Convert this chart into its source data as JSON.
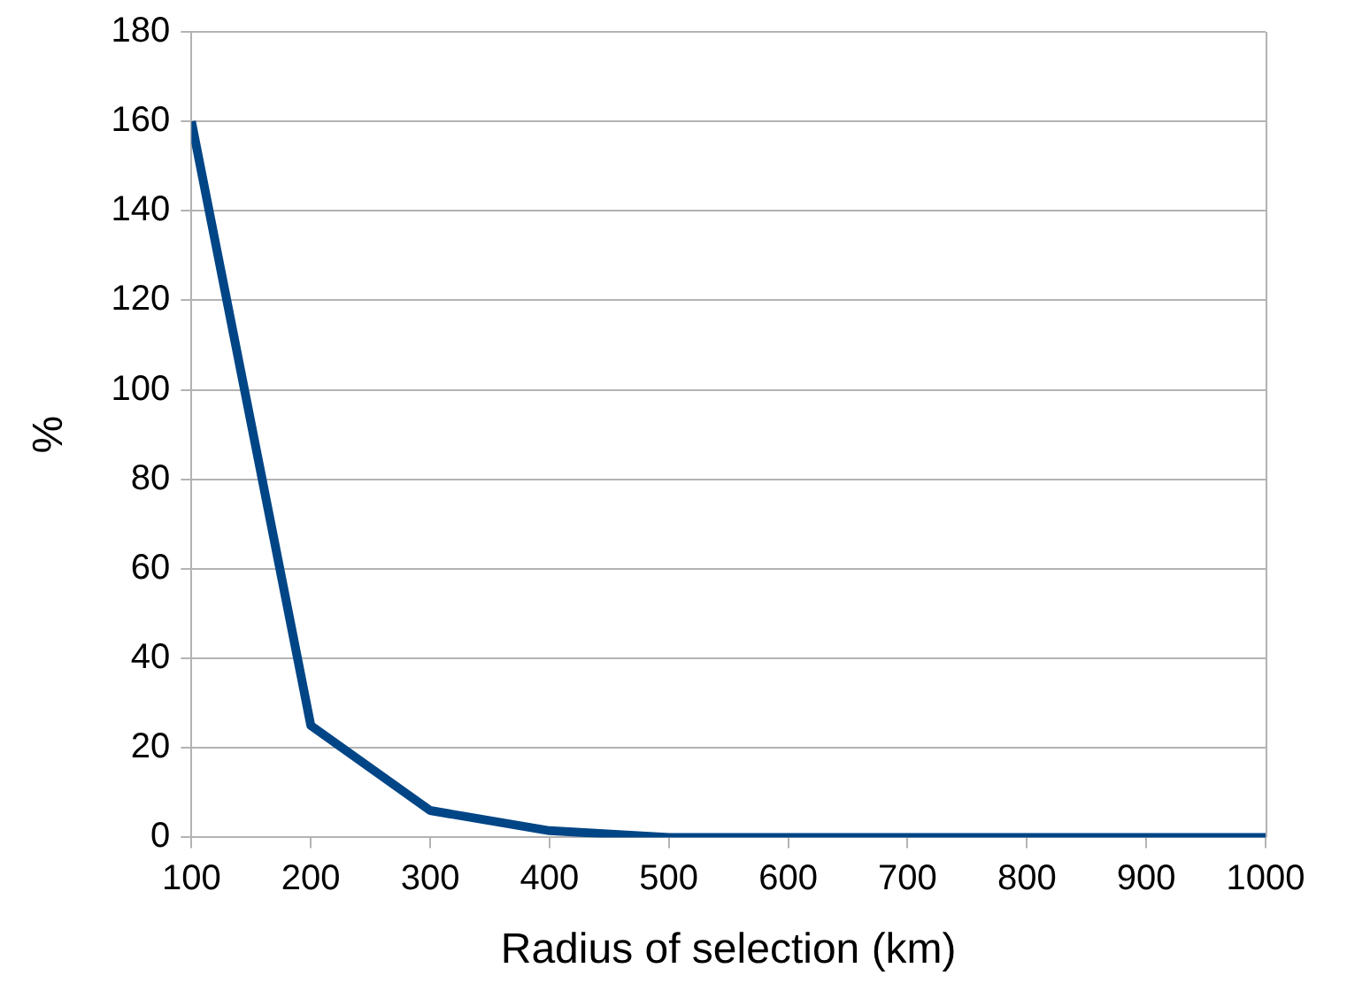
{
  "chart_data": {
    "type": "line",
    "xlabel": "Radius of selection (km)",
    "ylabel": "%",
    "x": [
      100,
      200,
      300,
      400,
      500,
      600,
      700,
      800,
      900,
      1000
    ],
    "series": [
      {
        "color": "#004586",
        "values": [
          160,
          25,
          6,
          1.5,
          0,
          0,
          0,
          0,
          0,
          0
        ]
      }
    ],
    "xlim": [
      100,
      1000
    ],
    "xticks": [
      100,
      200,
      300,
      400,
      500,
      600,
      700,
      800,
      900,
      1000
    ],
    "ylim": [
      0,
      180
    ],
    "yticks": [
      0,
      20,
      40,
      60,
      80,
      100,
      120,
      140,
      160,
      180
    ],
    "grid": "y",
    "legend": false,
    "marker": "none",
    "line_style": "solid"
  }
}
